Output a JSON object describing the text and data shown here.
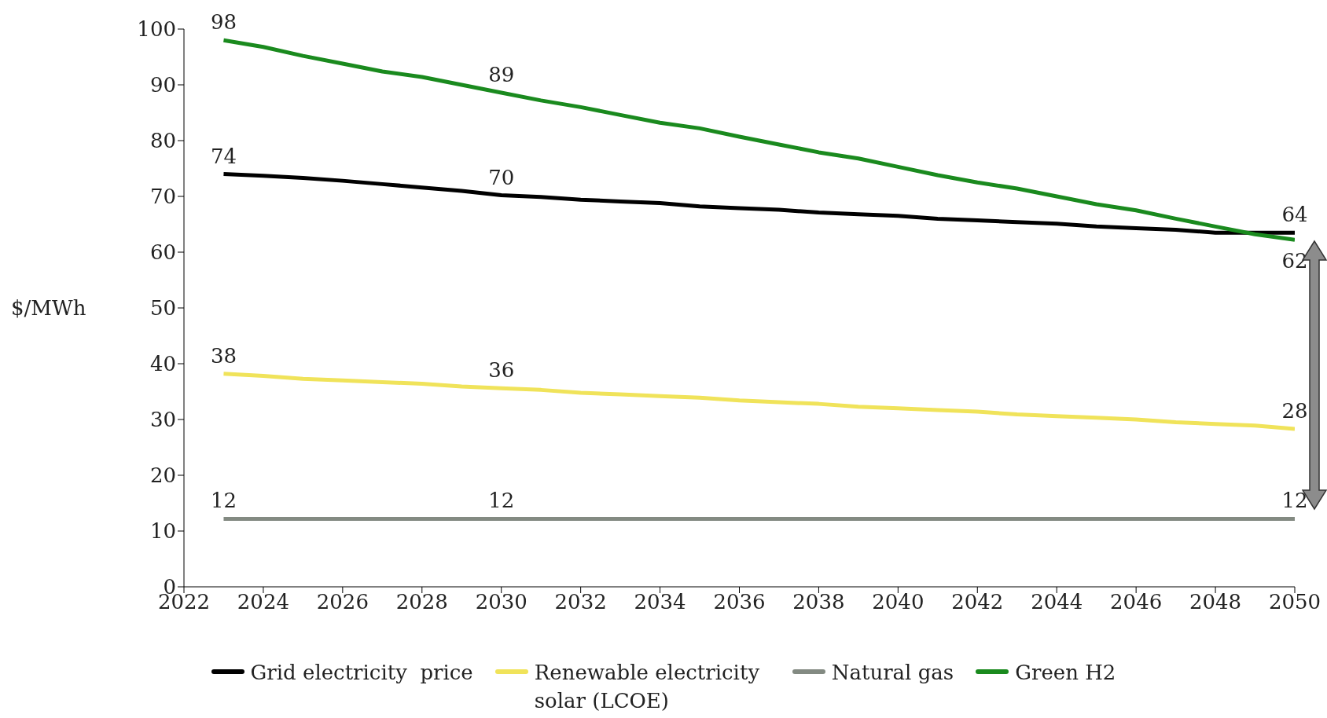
{
  "chart_data": {
    "type": "line",
    "ylabel": "$/MWh",
    "x": [
      2023,
      2024,
      2025,
      2026,
      2027,
      2028,
      2029,
      2030,
      2031,
      2032,
      2033,
      2034,
      2035,
      2036,
      2037,
      2038,
      2039,
      2040,
      2041,
      2042,
      2043,
      2044,
      2045,
      2046,
      2047,
      2048,
      2049,
      2050
    ],
    "xlim": [
      2022,
      2050
    ],
    "xticks": [
      2022,
      2024,
      2026,
      2028,
      2030,
      2032,
      2034,
      2036,
      2038,
      2040,
      2042,
      2044,
      2046,
      2048,
      2050
    ],
    "ylim": [
      0,
      100
    ],
    "yticks": [
      0,
      10,
      20,
      30,
      40,
      50,
      60,
      70,
      80,
      90,
      100
    ],
    "grid": false,
    "legend": "bottom",
    "marker": "none",
    "line_style": "solid",
    "series": [
      {
        "name": "Grid electricity  price",
        "color": "#000000",
        "values": [
          74,
          73.7,
          73.3,
          72.8,
          72.2,
          71.6,
          71,
          70.2,
          69.9,
          69.4,
          69.1,
          68.8,
          68.2,
          67.9,
          67.6,
          67.1,
          66.8,
          66.5,
          66,
          65.7,
          65.4,
          65.1,
          64.6,
          64.3,
          64,
          63.5,
          63.5,
          63.5
        ],
        "value_labels": [
          "74",
          null,
          null,
          null,
          null,
          null,
          null,
          "70",
          null,
          null,
          null,
          null,
          null,
          null,
          null,
          null,
          null,
          null,
          null,
          null,
          null,
          null,
          null,
          null,
          null,
          null,
          null,
          "64"
        ]
      },
      {
        "name": "Renewable electricity solar (LCOE)",
        "color": "#f0e35a",
        "values": [
          38.2,
          37.8,
          37.3,
          37,
          36.7,
          36.4,
          35.9,
          35.6,
          35.3,
          34.8,
          34.5,
          34.2,
          33.9,
          33.4,
          33.1,
          32.8,
          32.3,
          32,
          31.7,
          31.4,
          30.9,
          30.6,
          30.3,
          30,
          29.5,
          29.2,
          28.9,
          28.3
        ],
        "value_labels": [
          "38",
          null,
          null,
          null,
          null,
          null,
          null,
          "36",
          null,
          null,
          null,
          null,
          null,
          null,
          null,
          null,
          null,
          null,
          null,
          null,
          null,
          null,
          null,
          null,
          null,
          null,
          null,
          "28"
        ]
      },
      {
        "name": "Natural gas",
        "color": "#838a82",
        "values": [
          12.2,
          12.2,
          12.2,
          12.2,
          12.2,
          12.2,
          12.2,
          12.2,
          12.2,
          12.2,
          12.2,
          12.2,
          12.2,
          12.2,
          12.2,
          12.2,
          12.2,
          12.2,
          12.2,
          12.2,
          12.2,
          12.2,
          12.2,
          12.2,
          12.2,
          12.2,
          12.2,
          12.2
        ],
        "value_labels": [
          "12",
          null,
          null,
          null,
          null,
          null,
          null,
          "12",
          null,
          null,
          null,
          null,
          null,
          null,
          null,
          null,
          null,
          null,
          null,
          null,
          null,
          null,
          null,
          null,
          null,
          null,
          null,
          "12"
        ]
      },
      {
        "name": "Green H2",
        "color": "#1a8a1e",
        "values": [
          98,
          96.8,
          95.2,
          93.8,
          92.4,
          91.4,
          90,
          88.6,
          87.2,
          86,
          84.6,
          83.2,
          82.2,
          80.7,
          79.3,
          77.9,
          76.8,
          75.3,
          73.8,
          72.5,
          71.4,
          70,
          68.6,
          67.5,
          66,
          64.6,
          63.2,
          62.2
        ],
        "value_labels": [
          "98",
          null,
          null,
          null,
          null,
          null,
          null,
          "89",
          null,
          null,
          null,
          null,
          null,
          null,
          null,
          null,
          null,
          null,
          null,
          null,
          null,
          null,
          null,
          null,
          null,
          null,
          null,
          "62"
        ]
      }
    ]
  }
}
